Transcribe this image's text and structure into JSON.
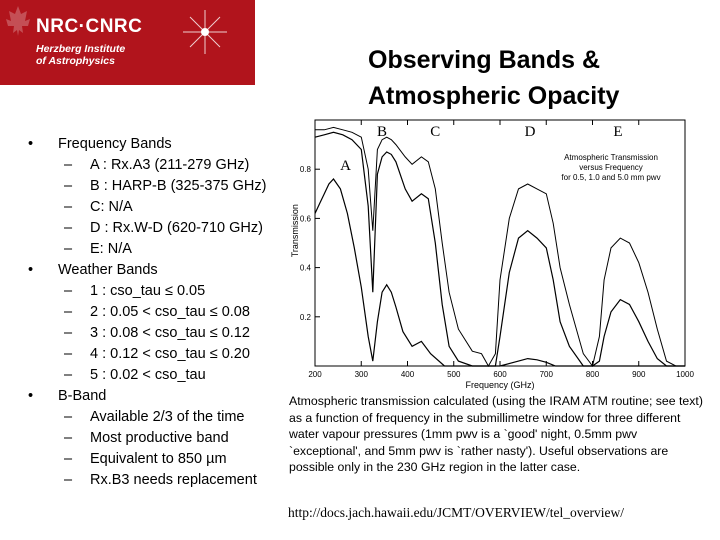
{
  "header": {
    "logo_main": "NRC·CNRC",
    "logo_line1": "Herzberg Institute",
    "logo_line2": "of Astrophysics",
    "title_line1": "Observing Bands &",
    "title_line2": "Atmospheric Opacity"
  },
  "bullets": [
    {
      "text": "Frequency Bands",
      "level": 1
    },
    {
      "text": "A : Rx.A3 (211-279 GHz)",
      "level": 2
    },
    {
      "text": "B : HARP-B (325-375 GHz)",
      "level": 2
    },
    {
      "text": "C: N/A",
      "level": 2
    },
    {
      "text": "D : Rx.W-D (620-710 GHz)",
      "level": 2
    },
    {
      "text": "E: N/A",
      "level": 2
    },
    {
      "text": "Weather Bands",
      "level": 1
    },
    {
      "text": "1 : cso_tau ≤ 0.05",
      "level": 2
    },
    {
      "text": "2 : 0.05 < cso_tau ≤ 0.08",
      "level": 2
    },
    {
      "text": "3 : 0.08 < cso_tau ≤ 0.12",
      "level": 2
    },
    {
      "text": "4 : 0.12 < cso_tau ≤ 0.20",
      "level": 2
    },
    {
      "text": "5 : 0.02 < cso_tau",
      "level": 2
    },
    {
      "text": "B-Band",
      "level": 1
    },
    {
      "text": "Available 2/3 of the time",
      "level": 2
    },
    {
      "text": "Most productive band",
      "level": 2
    },
    {
      "text": "Equivalent to 850 µm",
      "level": 2
    },
    {
      "text": "Rx.B3 needs replacement",
      "level": 2
    }
  ],
  "caption": "Atmospheric transmission calculated (using the IRAM ATM routine; see text) as a function of frequency in the submillimetre window for three different water vapour pressures (1mm pwv is a `good' night, 0.5mm pwv `exceptional', and 5mm pwv is `rather nasty'). Useful observations are possible only in the 230 GHz region in the latter case.",
  "url": "http://docs.jach.hawaii.edu/JCMT/OVERVIEW/tel_overview/",
  "colors": {
    "banner": "#b1141c",
    "text": "#000000",
    "plot": "#000000"
  },
  "chart_data": {
    "type": "line",
    "title": "Atmospheric Transmission versus Frequency for 0.5, 1.0 and 5.0 mm pwv",
    "xlabel": "Frequency (GHz)",
    "ylabel": "Transmission",
    "xlim": [
      200,
      1000
    ],
    "ylim": [
      0,
      1
    ],
    "x_ticks": [
      200,
      300,
      400,
      500,
      600,
      700,
      800,
      900,
      1000
    ],
    "y_ticks": [
      0.2,
      0.4,
      0.6,
      0.8
    ],
    "band_labels": [
      {
        "label": "A",
        "x": 240
      },
      {
        "label": "B",
        "x": 345
      },
      {
        "label": "C",
        "x": 460
      },
      {
        "label": "D",
        "x": 665
      },
      {
        "label": "E",
        "x": 855
      }
    ],
    "series": [
      {
        "name": "0.5 mm pwv",
        "x": [
          200,
          220,
          240,
          260,
          280,
          300,
          315,
          325,
          335,
          345,
          355,
          365,
          375,
          395,
          410,
          430,
          445,
          460,
          475,
          490,
          510,
          540,
          560,
          575,
          590,
          600,
          620,
          640,
          660,
          680,
          700,
          715,
          730,
          750,
          780,
          800,
          815,
          825,
          840,
          860,
          880,
          900,
          920,
          940,
          960,
          980,
          1000
        ],
        "y": [
          0.96,
          0.96,
          0.97,
          0.96,
          0.95,
          0.93,
          0.8,
          0.55,
          0.88,
          0.92,
          0.93,
          0.92,
          0.9,
          0.85,
          0.82,
          0.85,
          0.83,
          0.72,
          0.5,
          0.3,
          0.15,
          0.06,
          0.05,
          0.0,
          0.05,
          0.35,
          0.6,
          0.72,
          0.74,
          0.72,
          0.7,
          0.58,
          0.4,
          0.25,
          0.05,
          0.0,
          0.12,
          0.35,
          0.48,
          0.52,
          0.5,
          0.42,
          0.3,
          0.15,
          0.02,
          0.0,
          0.0
        ]
      },
      {
        "name": "1.0 mm pwv",
        "x": [
          200,
          220,
          240,
          260,
          280,
          300,
          315,
          325,
          335,
          345,
          355,
          365,
          375,
          395,
          410,
          430,
          445,
          460,
          475,
          490,
          510,
          540,
          560,
          575,
          590,
          600,
          620,
          640,
          660,
          680,
          700,
          715,
          730,
          750,
          780,
          800,
          815,
          825,
          840,
          860,
          880,
          900,
          920,
          940,
          960,
          980,
          1000
        ],
        "y": [
          0.93,
          0.94,
          0.95,
          0.94,
          0.92,
          0.88,
          0.65,
          0.3,
          0.78,
          0.85,
          0.87,
          0.86,
          0.83,
          0.72,
          0.67,
          0.7,
          0.68,
          0.5,
          0.25,
          0.08,
          0.02,
          0.0,
          0.0,
          0.0,
          0.0,
          0.12,
          0.38,
          0.52,
          0.55,
          0.52,
          0.48,
          0.35,
          0.18,
          0.08,
          0.0,
          0.0,
          0.02,
          0.12,
          0.22,
          0.27,
          0.25,
          0.18,
          0.1,
          0.03,
          0.0,
          0.0,
          0.0
        ]
      },
      {
        "name": "5.0 mm pwv",
        "x": [
          200,
          210,
          220,
          230,
          240,
          255,
          270,
          285,
          300,
          315,
          325,
          335,
          345,
          355,
          365,
          375,
          390,
          410,
          430,
          450,
          480,
          520,
          560,
          600,
          640,
          660,
          680,
          700,
          720,
          760,
          800,
          850,
          900,
          950,
          1000
        ],
        "y": [
          0.62,
          0.66,
          0.7,
          0.74,
          0.76,
          0.72,
          0.62,
          0.48,
          0.32,
          0.12,
          0.02,
          0.18,
          0.3,
          0.33,
          0.3,
          0.24,
          0.14,
          0.08,
          0.1,
          0.05,
          0.0,
          0.0,
          0.0,
          0.0,
          0.02,
          0.03,
          0.025,
          0.015,
          0.0,
          0.0,
          0.0,
          0.0,
          0.0,
          0.0,
          0.0
        ]
      }
    ]
  }
}
